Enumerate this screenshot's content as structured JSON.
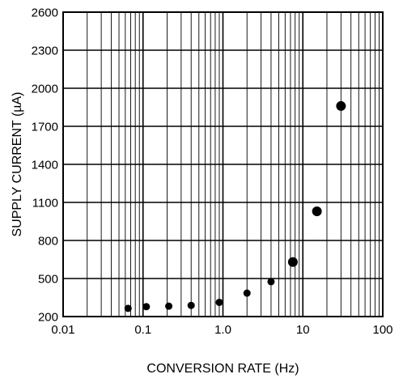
{
  "chart_data": {
    "type": "scatter",
    "title": "",
    "xlabel": "CONVERSION RATE (Hz)",
    "ylabel": "SUPPLY CURRENT (µA)",
    "x_scale": "log",
    "xlim": [
      0.01,
      100
    ],
    "ylim": [
      200,
      2600
    ],
    "grid": true,
    "x_tick_labels": [
      "0.01",
      "0.1",
      "1.0",
      "10",
      "100"
    ],
    "y_tick_labels": [
      "200",
      "500",
      "800",
      "1100",
      "1400",
      "1700",
      "2000",
      "2300",
      "2600"
    ],
    "series": [
      {
        "x": [
          0.065,
          0.11,
          0.21,
          0.4,
          0.9,
          2.0,
          4.0,
          7.5,
          15,
          30
        ],
        "y": [
          265,
          278,
          282,
          288,
          312,
          385,
          475,
          630,
          1030,
          1860
        ]
      }
    ],
    "marker_color": "#000000"
  }
}
